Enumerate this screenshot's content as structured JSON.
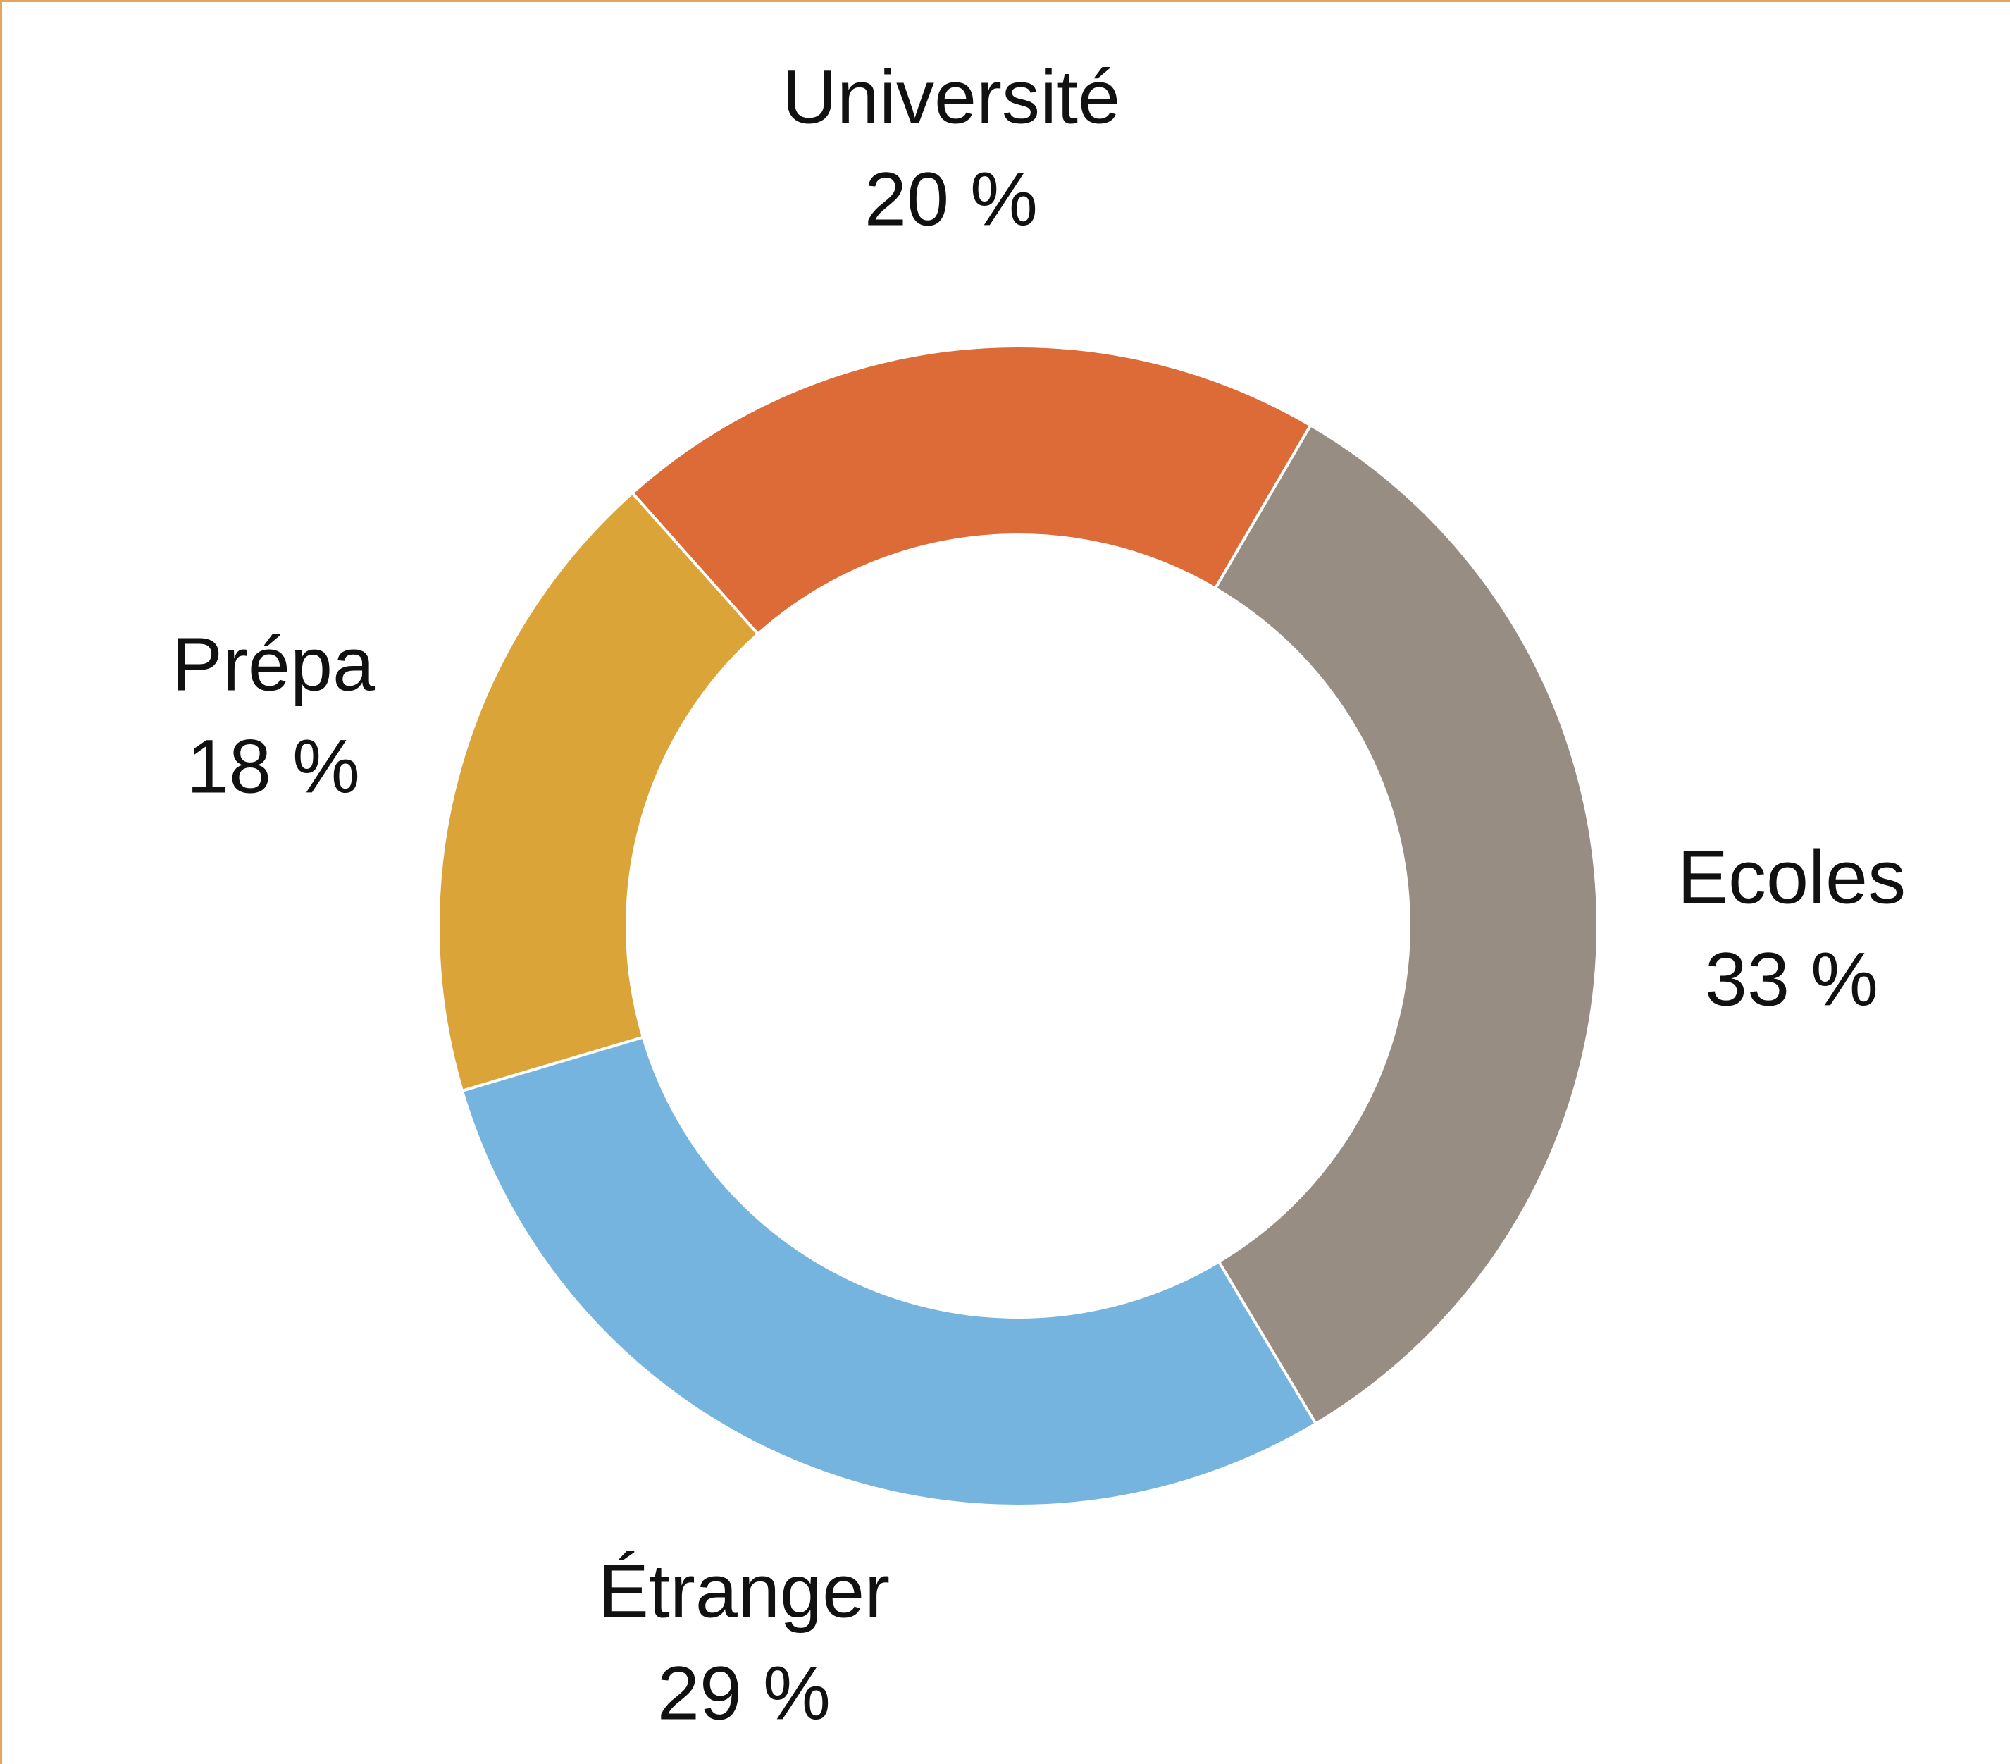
{
  "chart_data": {
    "type": "donut",
    "categories": [
      "Université",
      "Ecoles",
      "Étranger",
      "Prépa"
    ],
    "values": [
      20,
      33,
      29,
      18
    ],
    "value_labels": [
      "20 %",
      "33 %",
      "29 %",
      "18 %"
    ],
    "colors": [
      "#dc6b37",
      "#978d83",
      "#76b4e0",
      "#dba439"
    ]
  }
}
